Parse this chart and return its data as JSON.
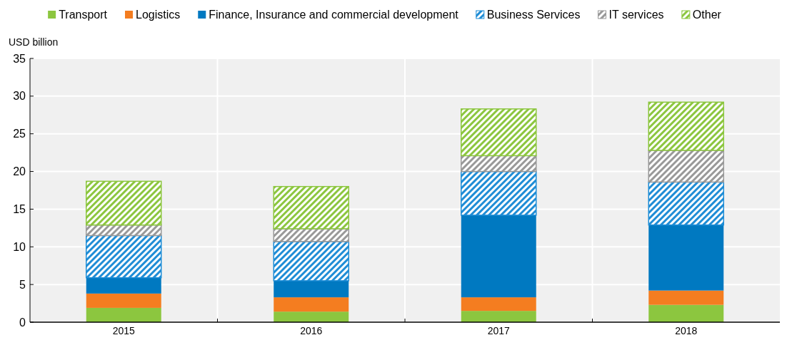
{
  "chart_data": {
    "type": "bar",
    "stacked": true,
    "ylabel": "USD billion",
    "categories": [
      "2015",
      "2016",
      "2017",
      "2018"
    ],
    "series": [
      {
        "name": "Transport",
        "color": "#8cc63f",
        "values": [
          1.9,
          1.4,
          1.5,
          2.3
        ]
      },
      {
        "name": "Logistics",
        "color": "#f47d20",
        "values": [
          1.9,
          1.9,
          1.8,
          1.9
        ]
      },
      {
        "name": "Finance, Insurance and commercial development",
        "color": "#0079c1",
        "values": [
          2.1,
          2.2,
          10.9,
          8.7
        ]
      },
      {
        "name": "Business Services",
        "color": "#1f8dd6",
        "values": [
          5.6,
          5.2,
          5.8,
          5.7
        ]
      },
      {
        "name": "IT services",
        "color": "#999999",
        "values": [
          1.4,
          1.7,
          2.1,
          4.2
        ]
      },
      {
        "name": "Other",
        "color": "#8cc63f",
        "values": [
          5.8,
          5.6,
          6.2,
          6.4
        ]
      }
    ],
    "ylim": [
      0,
      35
    ],
    "yticks": [
      0,
      5,
      10,
      15,
      20,
      25,
      30,
      35
    ],
    "grid": true,
    "legend": "top"
  }
}
